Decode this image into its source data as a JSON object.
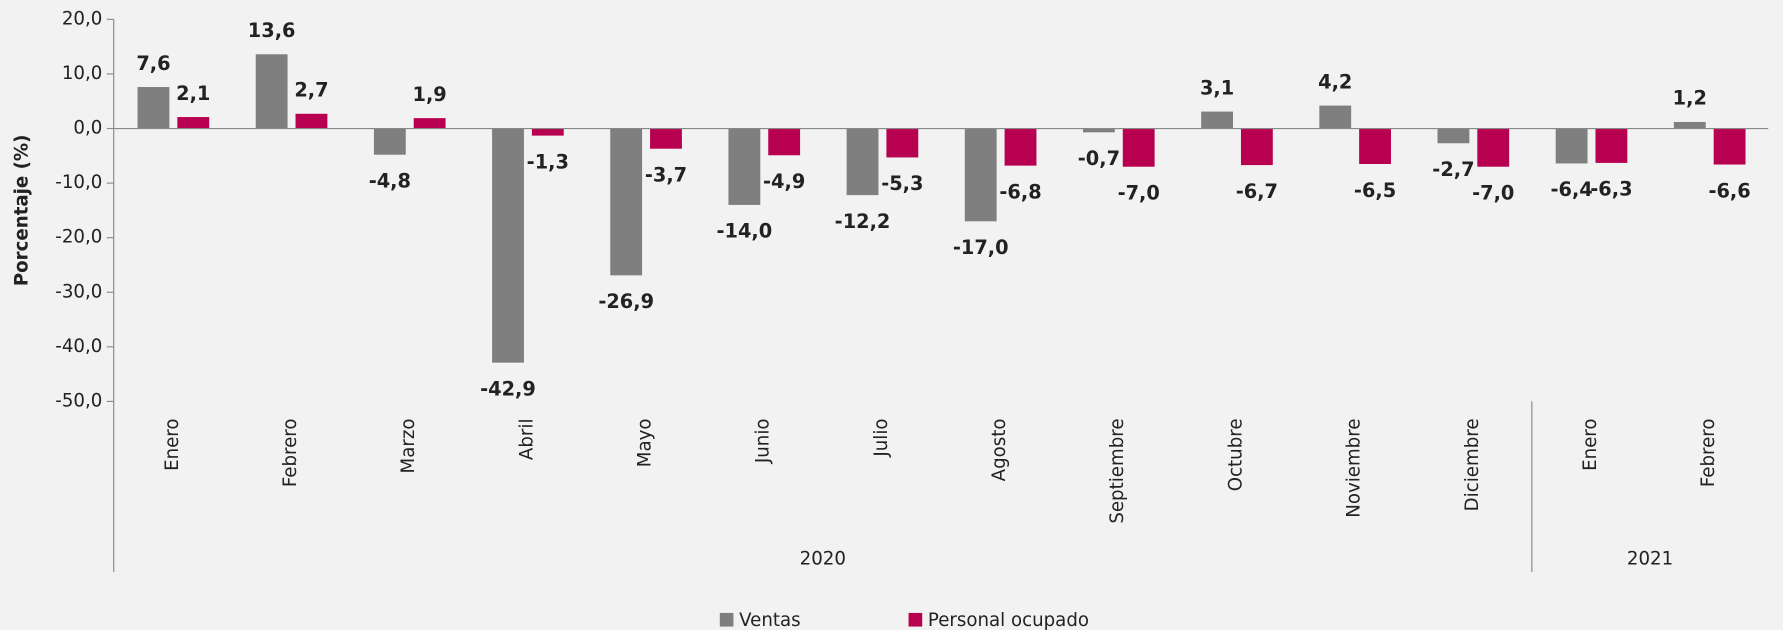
{
  "chart_data": {
    "type": "bar",
    "y_label": "Porcentaje (%)",
    "category_groups": [
      {
        "label": "2020",
        "categories": [
          "Enero",
          "Febrero",
          "Marzo",
          "Abril",
          "Mayo",
          "Junio",
          "Julio",
          "Agosto",
          "Septiembre",
          "Octubre",
          "Noviembre",
          "Diciembre"
        ]
      },
      {
        "label": "2021",
        "categories": [
          "Enero",
          "Febrero"
        ]
      }
    ],
    "series": [
      {
        "name": "Ventas",
        "color": "#7f7f7f",
        "values": [
          7.6,
          13.6,
          -4.8,
          -42.9,
          -26.9,
          -14.0,
          -12.2,
          -17.0,
          -0.7,
          3.1,
          4.2,
          -2.7,
          -6.4,
          1.2
        ],
        "value_labels": [
          "7,6",
          "13,6",
          "-4,8",
          "-42,9",
          "-26,9",
          "-14,0",
          "-12,2",
          "-17,0",
          "-0,7",
          "3,1",
          "4,2",
          "-2,7",
          "-6,4",
          "1,2"
        ]
      },
      {
        "name": "Personal ocupado",
        "color": "#b80050",
        "values": [
          2.1,
          2.7,
          1.9,
          -1.3,
          -3.7,
          -4.9,
          -5.3,
          -6.8,
          -7.0,
          -6.7,
          -6.5,
          -7.0,
          -6.3,
          -6.6
        ],
        "value_labels": [
          "2,1",
          "2,7",
          "1,9",
          "-1,3",
          "-3,7",
          "-4,9",
          "-5,3",
          "-6,8",
          "-7,0",
          "-6,7",
          "-6,5",
          "-7,0",
          "-6,3",
          "-6,6"
        ]
      }
    ],
    "ylim": [
      -50,
      20
    ],
    "yticks": [
      {
        "value": -50,
        "label": "-50,0"
      },
      {
        "value": -40,
        "label": "-40,0"
      },
      {
        "value": -30,
        "label": "-30,0"
      },
      {
        "value": -20,
        "label": "-20,0"
      },
      {
        "value": -10,
        "label": "-10,0"
      },
      {
        "value": 0,
        "label": "0,0"
      },
      {
        "value": 10,
        "label": "10,0"
      },
      {
        "value": 20,
        "label": "20,0"
      }
    ],
    "legend": "bottom"
  }
}
